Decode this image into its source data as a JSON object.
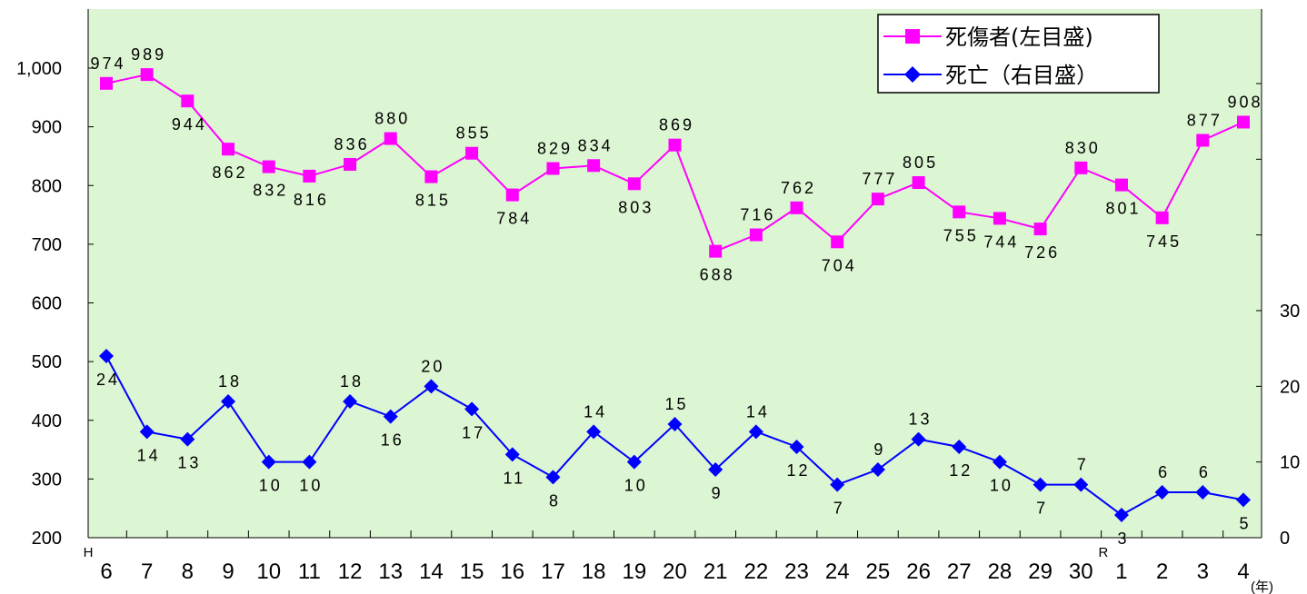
{
  "chart_data": {
    "type": "line",
    "categories": [
      "6",
      "7",
      "8",
      "9",
      "10",
      "11",
      "12",
      "13",
      "14",
      "15",
      "16",
      "17",
      "18",
      "19",
      "20",
      "21",
      "22",
      "23",
      "24",
      "25",
      "26",
      "27",
      "28",
      "29",
      "30",
      "1",
      "2",
      "3",
      "4"
    ],
    "era_markers": [
      {
        "label": "H",
        "category": "6"
      },
      {
        "label": "R",
        "category": "1"
      }
    ],
    "x_unit": "(年)",
    "series": [
      {
        "name": "死傷者(左目盛)",
        "axis": "left",
        "color": "#ff00ff",
        "marker": "square",
        "values": [
          974,
          989,
          944,
          862,
          832,
          816,
          836,
          880,
          815,
          855,
          784,
          829,
          834,
          803,
          869,
          688,
          716,
          762,
          704,
          777,
          805,
          755,
          744,
          726,
          830,
          801,
          745,
          877,
          908
        ]
      },
      {
        "name": "死亡（右目盛）",
        "axis": "right",
        "color": "#0000ff",
        "marker": "diamond",
        "values": [
          24,
          14,
          13,
          18,
          10,
          10,
          18,
          16,
          20,
          17,
          11,
          8,
          14,
          10,
          15,
          9,
          14,
          12,
          7,
          9,
          13,
          12,
          10,
          7,
          7,
          3,
          6,
          6,
          5
        ]
      }
    ],
    "left_axis": {
      "min": 200,
      "max": 1000,
      "ticks": [
        "200",
        "300",
        "400",
        "500",
        "600",
        "700",
        "800",
        "900",
        "1,000"
      ]
    },
    "right_axis": {
      "min": 0,
      "max": 30,
      "ticks": [
        "0",
        "10",
        "20",
        "30"
      ]
    },
    "plot_background": "#dcf5d2",
    "grid": false,
    "legend_position": "top-right"
  }
}
